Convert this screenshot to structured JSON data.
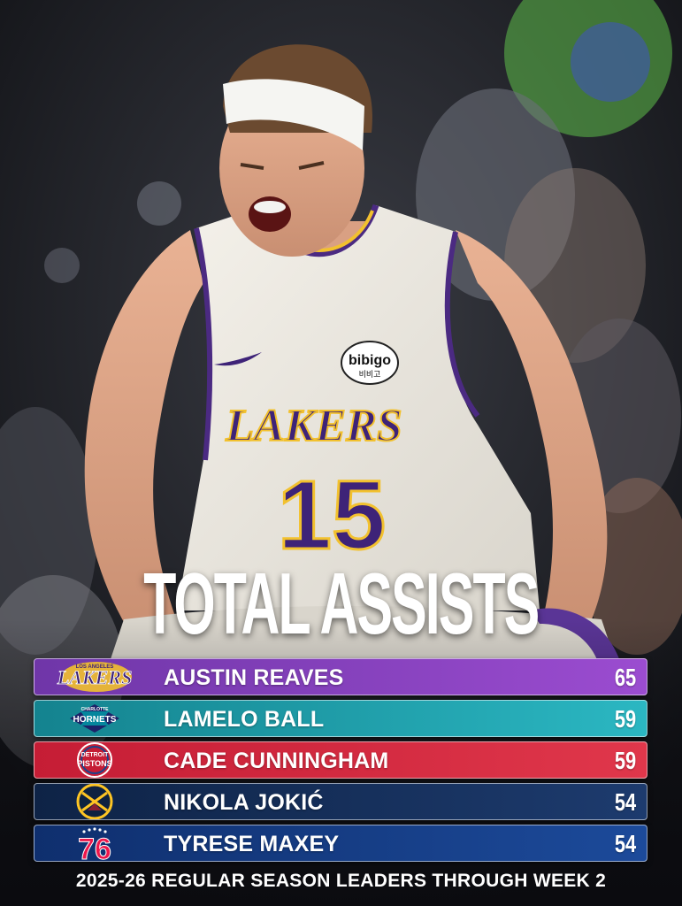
{
  "graphic": {
    "title": "TOTAL ASSISTS",
    "footer": "2025-26 REGULAR SEASON LEADERS THROUGH WEEK 2"
  },
  "photo": {
    "jersey_wordmark": "LAKERS",
    "jersey_number": "15",
    "jersey_patch": "bibigo",
    "jersey_patch_sub": "비비고"
  },
  "leaders": [
    {
      "name": "AUSTIN REAVES",
      "value": "65",
      "team_logo": "lakers-logo",
      "logo_text": "LAKERS",
      "logo_sub": "LOS ANGELES",
      "color_a": "#6f36a8",
      "color_b": "#9b4cd0"
    },
    {
      "name": "LAMELO BALL",
      "value": "59",
      "team_logo": "hornets-logo",
      "logo_text": "HORNETS",
      "logo_sub": "CHARLOTTE",
      "color_a": "#14838f",
      "color_b": "#2bb7c2"
    },
    {
      "name": "CADE CUNNINGHAM",
      "value": "59",
      "team_logo": "pistons-logo",
      "logo_text": "PISTONS",
      "logo_sub": "DETROIT",
      "color_a": "#c51d35",
      "color_b": "#e0374b"
    },
    {
      "name": "NIKOLA JOKIĆ",
      "value": "54",
      "team_logo": "nuggets-logo",
      "logo_text": "",
      "logo_sub": "",
      "color_a": "#0e2346",
      "color_b": "#1d3b6e"
    },
    {
      "name": "TYRESE MAXEY",
      "value": "54",
      "team_logo": "76ers-logo",
      "logo_text": "76",
      "logo_sub": "",
      "color_a": "#0f2f6e",
      "color_b": "#1c4a9a"
    }
  ]
}
